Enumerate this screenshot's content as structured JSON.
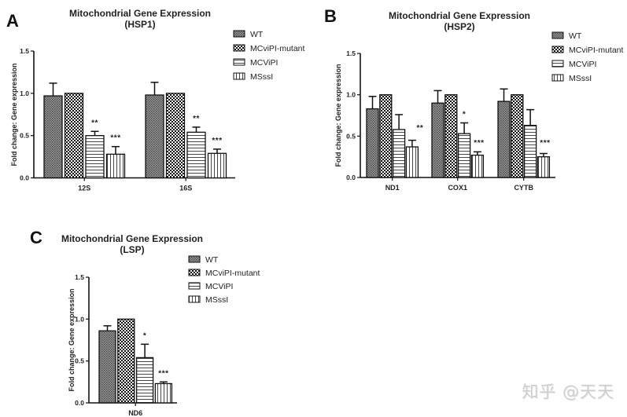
{
  "figure": {
    "watermark": "知乎 @天天"
  },
  "legend": {
    "items": [
      {
        "label": "WT",
        "pattern": "fine-dots"
      },
      {
        "label": "MCviPI-mutant",
        "pattern": "checker"
      },
      {
        "label": "MCViPI",
        "pattern": "horizontal-lines"
      },
      {
        "label": "MSssI",
        "pattern": "vertical-lines"
      }
    ]
  },
  "chart_data": [
    {
      "panel": "A",
      "type": "bar",
      "title": "Mitochondrial Gene Expression",
      "subtitle": "(HSP1)",
      "xlabel": "",
      "ylabel": "Fold change: Gene expression",
      "ylim": [
        0,
        1.5
      ],
      "yticks": [
        "0.0",
        "0.5",
        "1.0",
        "1.5"
      ],
      "legend_position": "top-right",
      "categories": [
        "12S",
        "16S"
      ],
      "series": [
        {
          "name": "WT",
          "values": [
            0.97,
            0.98
          ],
          "error_top": [
            1.12,
            1.13
          ],
          "significance": [
            "",
            ""
          ]
        },
        {
          "name": "MCviPI-mutant",
          "values": [
            1.0,
            1.0
          ],
          "error_top": [
            1.0,
            1.0
          ],
          "significance": [
            "",
            ""
          ]
        },
        {
          "name": "MCViPI",
          "values": [
            0.5,
            0.54
          ],
          "error_top": [
            0.55,
            0.6
          ],
          "significance": [
            "**",
            "**"
          ]
        },
        {
          "name": "MSssI",
          "values": [
            0.28,
            0.29
          ],
          "error_top": [
            0.37,
            0.34
          ],
          "significance": [
            "***",
            "***"
          ]
        }
      ]
    },
    {
      "panel": "B",
      "type": "bar",
      "title": "Mitochondrial Gene Expression",
      "subtitle": "(HSP2)",
      "xlabel": "",
      "ylabel": "Fold change: Gene expression",
      "ylim": [
        0,
        1.5
      ],
      "yticks": [
        "0.0",
        "0.5",
        "1.0",
        "1.5"
      ],
      "legend_position": "top-right",
      "categories": [
        "ND1",
        "COX1",
        "CYTB"
      ],
      "series": [
        {
          "name": "WT",
          "values": [
            0.83,
            0.9,
            0.92
          ],
          "error_top": [
            0.98,
            1.05,
            1.07
          ],
          "significance": [
            "",
            "",
            ""
          ]
        },
        {
          "name": "MCviPI-mutant",
          "values": [
            1.0,
            1.0,
            1.0
          ],
          "error_top": [
            1.0,
            1.0,
            1.0
          ],
          "significance": [
            "",
            "",
            ""
          ]
        },
        {
          "name": "MCViPI",
          "values": [
            0.58,
            0.53,
            0.63
          ],
          "error_top": [
            0.76,
            0.66,
            0.82
          ],
          "significance": [
            "",
            "*",
            ""
          ]
        },
        {
          "name": "MSssI",
          "values": [
            0.37,
            0.27,
            0.25
          ],
          "error_top": [
            0.45,
            0.31,
            0.29
          ],
          "significance": [
            "**",
            "***",
            "***"
          ]
        }
      ]
    },
    {
      "panel": "C",
      "type": "bar",
      "title": "Mitochondrial Gene Expression",
      "subtitle": "(LSP)",
      "xlabel": "",
      "ylabel": "Fold change: Gene expression",
      "ylim": [
        0,
        1.5
      ],
      "yticks": [
        "0.0",
        "0.5",
        "1.0",
        "1.5"
      ],
      "legend_position": "top-right",
      "categories": [
        "ND6"
      ],
      "series": [
        {
          "name": "WT",
          "values": [
            0.86
          ],
          "error_top": [
            0.92
          ],
          "significance": [
            ""
          ]
        },
        {
          "name": "MCviPI-mutant",
          "values": [
            1.0
          ],
          "error_top": [
            1.0
          ],
          "significance": [
            ""
          ]
        },
        {
          "name": "MCViPI",
          "values": [
            0.54
          ],
          "error_top": [
            0.7
          ],
          "significance": [
            "*"
          ]
        },
        {
          "name": "MSssI",
          "values": [
            0.23
          ],
          "error_top": [
            0.25
          ],
          "significance": [
            "***"
          ]
        }
      ]
    }
  ]
}
